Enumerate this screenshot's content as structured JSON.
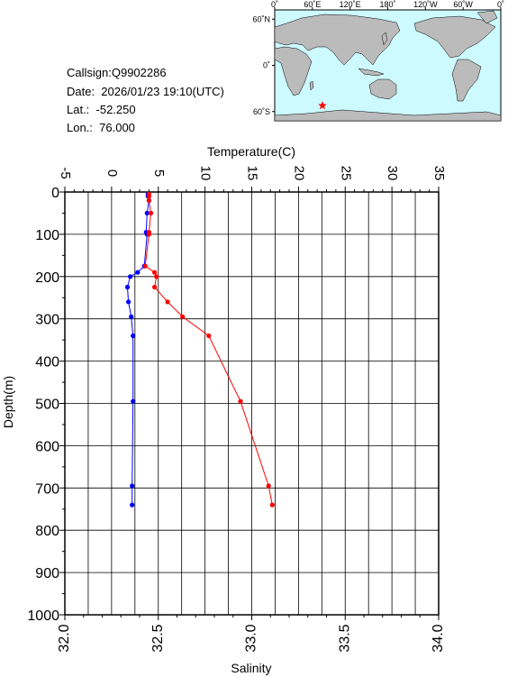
{
  "info": {
    "callsign": "Callsign:Q9902286",
    "date": "Date:  2026/01/23 19:10(UTC)",
    "lat": "Lat.:  -52.250",
    "lon": "Lon.:  76.000"
  },
  "map": {
    "top_labels": [
      "0˚",
      "60˚E",
      "120˚E",
      "180˚",
      "120˚W",
      "60˚W",
      "0˚"
    ],
    "left_labels": [
      "60˚N",
      "0˚",
      "60˚S"
    ],
    "ocean_color": "#cdfaff",
    "land_color": "#bbbbbb",
    "station_marker_color": "#ff0000",
    "station": {
      "lat": -52.25,
      "lon": 76.0
    }
  },
  "chart_data": {
    "type": "line",
    "temperature_axis": {
      "label": "Temperature(C)",
      "range": [
        -5,
        35
      ],
      "ticks": [
        "-5",
        "0",
        "5",
        "10",
        "15",
        "20",
        "25",
        "30",
        "35"
      ]
    },
    "salinity_axis": {
      "label": "Salinity",
      "range": [
        32.0,
        34.0
      ],
      "ticks": [
        "32.0",
        "32.5",
        "33.0",
        "33.5",
        "34.0"
      ]
    },
    "depth_axis": {
      "label": "Depth(m)",
      "range": [
        0,
        1000
      ],
      "ticks": [
        "0",
        "100",
        "200",
        "300",
        "400",
        "500",
        "600",
        "700",
        "800",
        "900",
        "1000"
      ]
    },
    "grid": true,
    "series": [
      {
        "axis": "temperature",
        "color": "#0000ff",
        "points": [
          {
            "depth": 5,
            "value": 3.9
          },
          {
            "depth": 10,
            "value": 3.9
          },
          {
            "depth": 20,
            "value": 4.0
          },
          {
            "depth": 50,
            "value": 3.8
          },
          {
            "depth": 95,
            "value": 3.7
          },
          {
            "depth": 100,
            "value": 3.8
          },
          {
            "depth": 175,
            "value": 3.5
          },
          {
            "depth": 190,
            "value": 2.8
          },
          {
            "depth": 200,
            "value": 2.0
          },
          {
            "depth": 225,
            "value": 1.7
          },
          {
            "depth": 260,
            "value": 1.8
          },
          {
            "depth": 295,
            "value": 2.1
          },
          {
            "depth": 340,
            "value": 2.3
          },
          {
            "depth": 495,
            "value": 2.3
          },
          {
            "depth": 695,
            "value": 2.2
          },
          {
            "depth": 740,
            "value": 2.2
          }
        ]
      },
      {
        "axis": "salinity",
        "color": "#ff0000",
        "points": [
          {
            "depth": 5,
            "value": 32.45
          },
          {
            "depth": 10,
            "value": 32.45
          },
          {
            "depth": 20,
            "value": 32.45
          },
          {
            "depth": 50,
            "value": 32.46
          },
          {
            "depth": 95,
            "value": 32.45
          },
          {
            "depth": 100,
            "value": 32.45
          },
          {
            "depth": 175,
            "value": 32.43
          },
          {
            "depth": 190,
            "value": 32.48
          },
          {
            "depth": 200,
            "value": 32.49
          },
          {
            "depth": 225,
            "value": 32.48
          },
          {
            "depth": 260,
            "value": 32.55
          },
          {
            "depth": 295,
            "value": 32.63
          },
          {
            "depth": 340,
            "value": 32.77
          },
          {
            "depth": 495,
            "value": 32.94
          },
          {
            "depth": 695,
            "value": 33.09
          },
          {
            "depth": 740,
            "value": 33.11
          }
        ]
      }
    ]
  }
}
